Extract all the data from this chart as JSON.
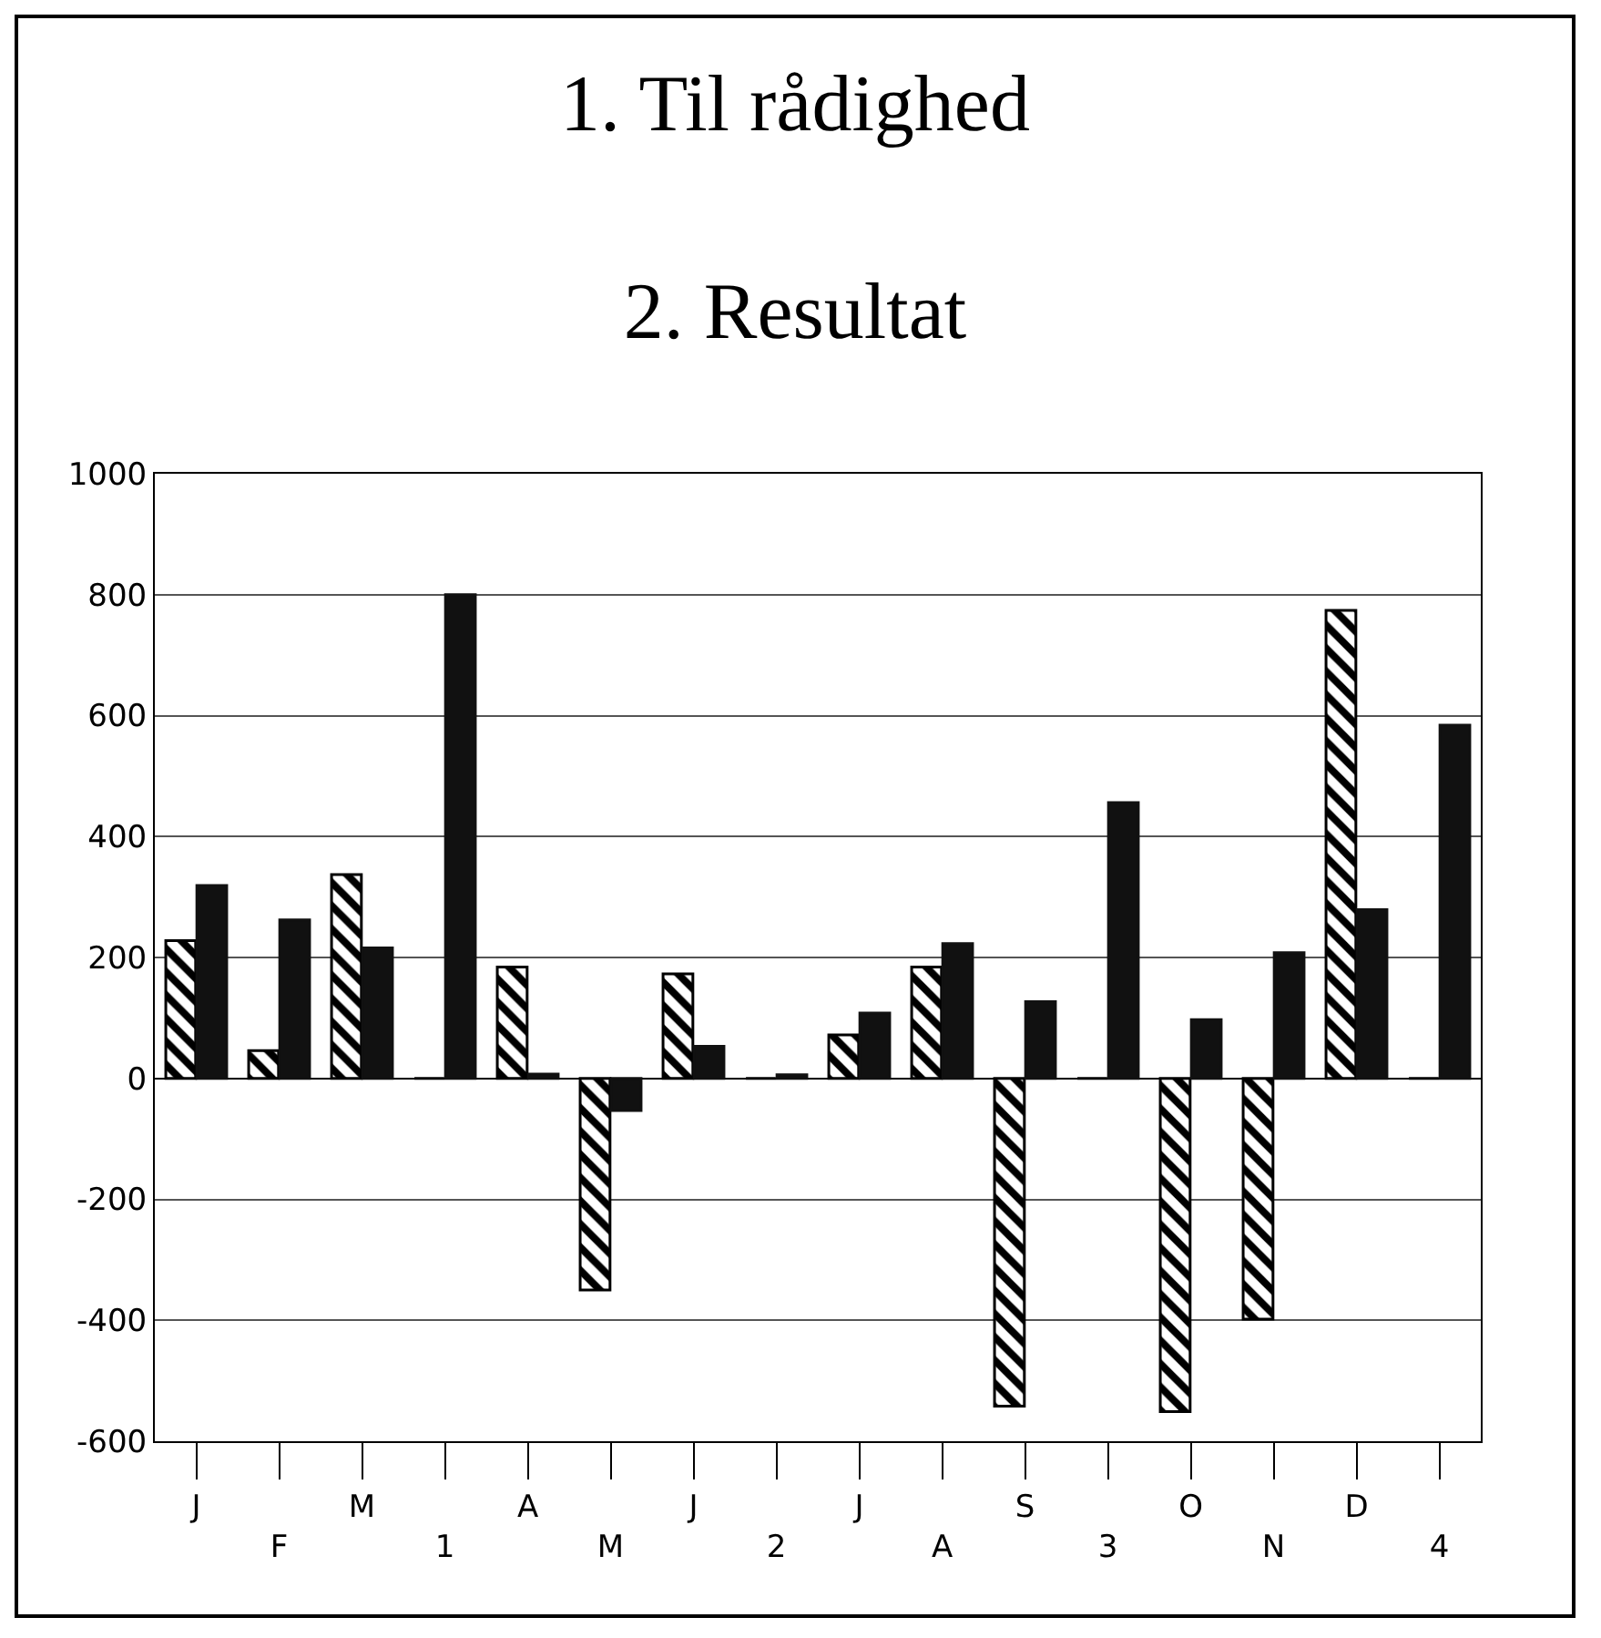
{
  "chart_data": {
    "type": "bar",
    "title": "1. Til rådighed\n2. Resultat",
    "categories": [
      "J",
      "F",
      "M",
      "1",
      "A",
      "M",
      "J",
      "2",
      "J",
      "A",
      "S",
      "3",
      "O",
      "N",
      "D",
      "4"
    ],
    "series": [
      {
        "color": "#000000",
        "values": [
          228,
          46,
          337,
          0,
          184,
          -350,
          173,
          0,
          72,
          184,
          -542,
          0,
          -551,
          -398,
          774,
          0
        ]
      },
      {
        "color": "#111111",
        "values": [
          319,
          262,
          216,
          800,
          7,
          -53,
          53,
          6,
          108,
          223,
          127,
          456,
          97,
          208,
          279,
          584
        ]
      }
    ],
    "ylim": [
      -600,
      1000
    ],
    "yticks": [
      -600,
      -400,
      -200,
      0,
      200,
      400,
      600,
      800,
      1000
    ],
    "grid": "y"
  }
}
